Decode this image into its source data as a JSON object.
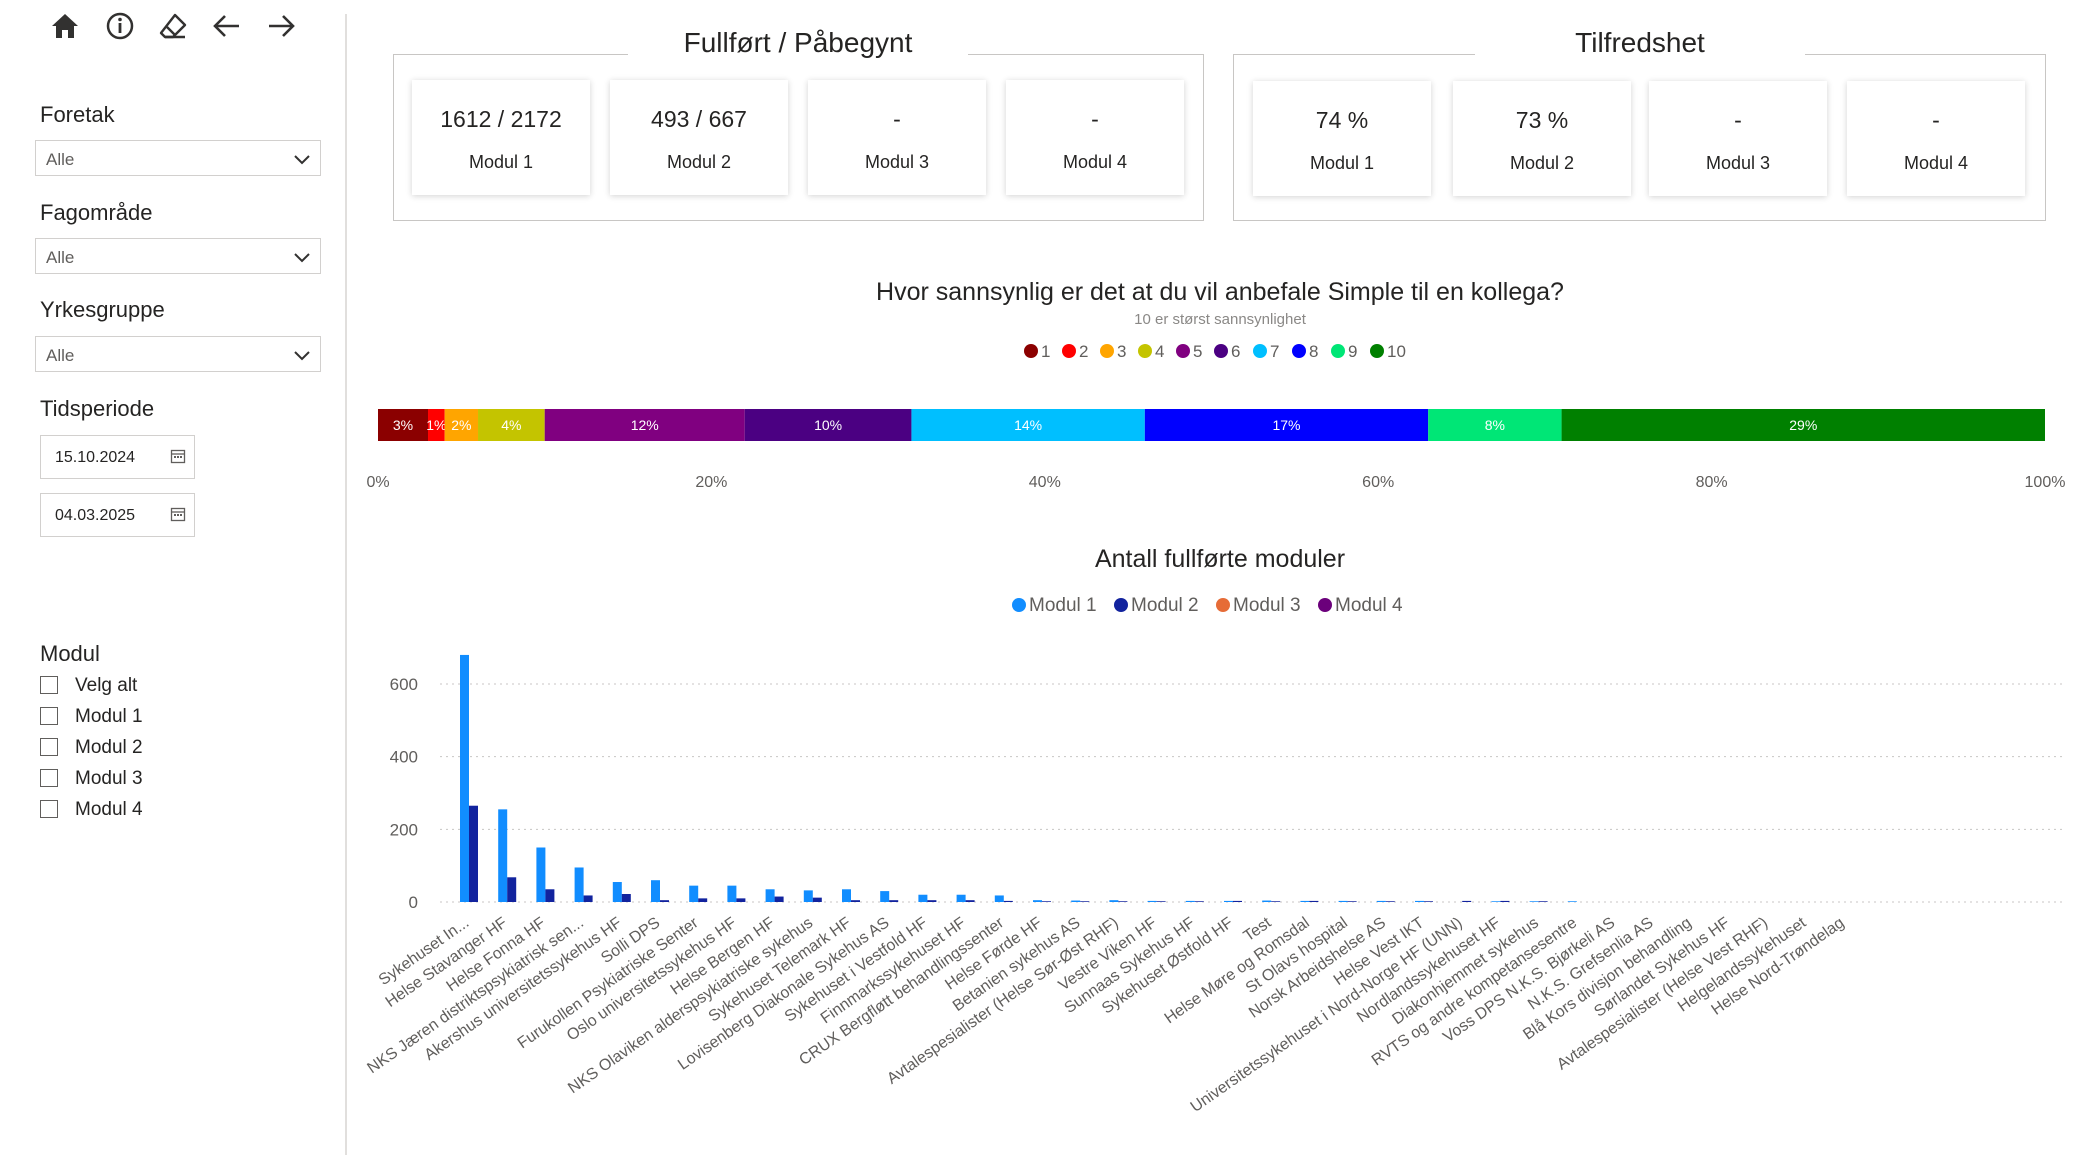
{
  "sidebar": {
    "slicers": [
      {
        "label": "Foretak",
        "value": "Alle"
      },
      {
        "label": "Fagområde",
        "value": "Alle"
      },
      {
        "label": "Yrkesgruppe",
        "value": "Alle"
      }
    ],
    "period": {
      "label": "Tidsperiode",
      "start": "15.10.2024",
      "end": "04.03.2025"
    },
    "modul_filter": {
      "label": "Modul",
      "options": [
        "Velg alt",
        "Modul 1",
        "Modul 2",
        "Modul 3",
        "Modul 4"
      ]
    }
  },
  "nav": [
    {
      "icon": "home-icon"
    },
    {
      "icon": "info-icon"
    },
    {
      "icon": "eraser-icon"
    },
    {
      "icon": "back-arrow-icon"
    },
    {
      "icon": "forward-arrow-icon"
    }
  ],
  "fullfort": {
    "title": "Fullført / Påbegynt",
    "cards": [
      {
        "value": "1612 / 2172",
        "label": "Modul 1"
      },
      {
        "value": "493 / 667",
        "label": "Modul 2"
      },
      {
        "value": "-",
        "label": "Modul 3"
      },
      {
        "value": "-",
        "label": "Modul 4"
      }
    ]
  },
  "tilfredshet": {
    "title": "Tilfredshet",
    "cards": [
      {
        "value": "74 %",
        "label": "Modul 1"
      },
      {
        "value": "73 %",
        "label": "Modul 2"
      },
      {
        "value": "-",
        "label": "Modul 3"
      },
      {
        "value": "-",
        "label": "Modul 4"
      }
    ]
  },
  "chart_data": [
    {
      "type": "bar",
      "stacked": true,
      "orientation": "horizontal",
      "title": "Hvor sannsynlig er det at du vil anbefale Simple til en kollega?",
      "subtitle": "10 er størst sannsynlighet",
      "legend_position": "top-center",
      "series": [
        {
          "name": "1",
          "value": 3,
          "label": "3%",
          "color": "#8b0000"
        },
        {
          "name": "2",
          "value": 1,
          "label": "1%",
          "color": "#ff0000"
        },
        {
          "name": "3",
          "value": 2,
          "label": "2%",
          "color": "#ffa500"
        },
        {
          "name": "4",
          "value": 4,
          "label": "4%",
          "color": "#c4c400"
        },
        {
          "name": "5",
          "value": 12,
          "label": "12%",
          "color": "#800080"
        },
        {
          "name": "6",
          "value": 10,
          "label": "10%",
          "color": "#4b0082"
        },
        {
          "name": "7",
          "value": 14,
          "label": "14%",
          "color": "#00bfff"
        },
        {
          "name": "8",
          "value": 17,
          "label": "17%",
          "color": "#0000ff"
        },
        {
          "name": "9",
          "value": 8,
          "label": "8%",
          "color": "#00e676"
        },
        {
          "name": "10",
          "value": 29,
          "label": "29%",
          "color": "#008000"
        }
      ],
      "x_ticks": [
        "0%",
        "20%",
        "40%",
        "60%",
        "80%",
        "100%"
      ],
      "xlim": [
        0,
        100
      ]
    },
    {
      "type": "bar",
      "title": "Antall fullførte moduler",
      "legend_position": "top-center",
      "ylim": [
        0,
        700
      ],
      "y_ticks": [
        0,
        200,
        400,
        600
      ],
      "grid": true,
      "categories": [
        "Sykehuset In...",
        "Helse Stavanger HF",
        "Helse Fonna HF",
        "NKS Jæren distriktspsykiatrisk sen...",
        "Akershus universitetssykehus HF",
        "Solli DPS",
        "Furukollen Psykiatriske Senter",
        "Oslo universitetssykehus HF",
        "Helse Bergen HF",
        "NKS Olaviken alderspsykiatriske sykehus",
        "Sykehuset Telemark HF",
        "Lovisenberg Diakonale Sykehus AS",
        "Sykehuset i Vestfold HF",
        "Finnmarkssykehuset HF",
        "CRUX Bergfløtt behandlingssenter",
        "Helse Førde HF",
        "Betanien sykehus AS",
        "Avtalespesialister (Helse Sør-Øst RHF)",
        "Vestre Viken HF",
        "Sunnaas Sykehus HF",
        "Sykehuset Østfold HF",
        "Test",
        "Helse Møre og Romsdal",
        "St Olavs hospital",
        "Norsk Arbeidshelse AS",
        "Helse Vest IKT",
        "Universitetssykehuset i Nord-Norge HF (UNN)",
        "Nordlandssykehuset HF",
        "Diakonhjemmet sykehus",
        "RVTS og andre kompetansesentre",
        "Voss DPS N.K.S. Bjørkeli AS",
        "N.K.S. Grefsenlia AS",
        "Blå Kors divisjon behandling",
        "Sørlandet Sykehus HF",
        "Avtalespesialister (Helse Vest RHF)",
        "Helgelandssykehuset",
        "Helse Nord-Trøndelag"
      ],
      "series": [
        {
          "name": "Modul 1",
          "color": "#118dff",
          "values": [
            680,
            255,
            150,
            95,
            55,
            60,
            45,
            45,
            35,
            32,
            35,
            30,
            20,
            20,
            18,
            5,
            4,
            5,
            3,
            3,
            3,
            4,
            3,
            3,
            3,
            3,
            1,
            2,
            2,
            2,
            1,
            1,
            0,
            0,
            0,
            0,
            0
          ]
        },
        {
          "name": "Modul 2",
          "color": "#12239e",
          "values": [
            265,
            68,
            35,
            18,
            22,
            5,
            10,
            10,
            15,
            12,
            5,
            5,
            5,
            5,
            3,
            2,
            2,
            2,
            2,
            2,
            3,
            2,
            3,
            2,
            2,
            2,
            3,
            3,
            2,
            1,
            1,
            1,
            0,
            0,
            0,
            0,
            0
          ]
        },
        {
          "name": "Modul 3",
          "color": "#e66c37",
          "values": [
            0,
            0,
            0,
            0,
            0,
            0,
            0,
            0,
            0,
            0,
            0,
            0,
            0,
            0,
            0,
            0,
            0,
            0,
            0,
            0,
            0,
            0,
            0,
            0,
            0,
            0,
            0,
            0,
            0,
            0,
            0,
            0,
            0,
            0,
            0,
            0,
            0
          ]
        },
        {
          "name": "Modul 4",
          "color": "#6b007b",
          "values": [
            0,
            0,
            0,
            0,
            0,
            0,
            0,
            0,
            0,
            0,
            0,
            0,
            0,
            0,
            0,
            0,
            0,
            0,
            0,
            0,
            0,
            0,
            0,
            0,
            0,
            0,
            0,
            0,
            0,
            0,
            0,
            0,
            0,
            0,
            0,
            0,
            0
          ]
        }
      ]
    }
  ]
}
